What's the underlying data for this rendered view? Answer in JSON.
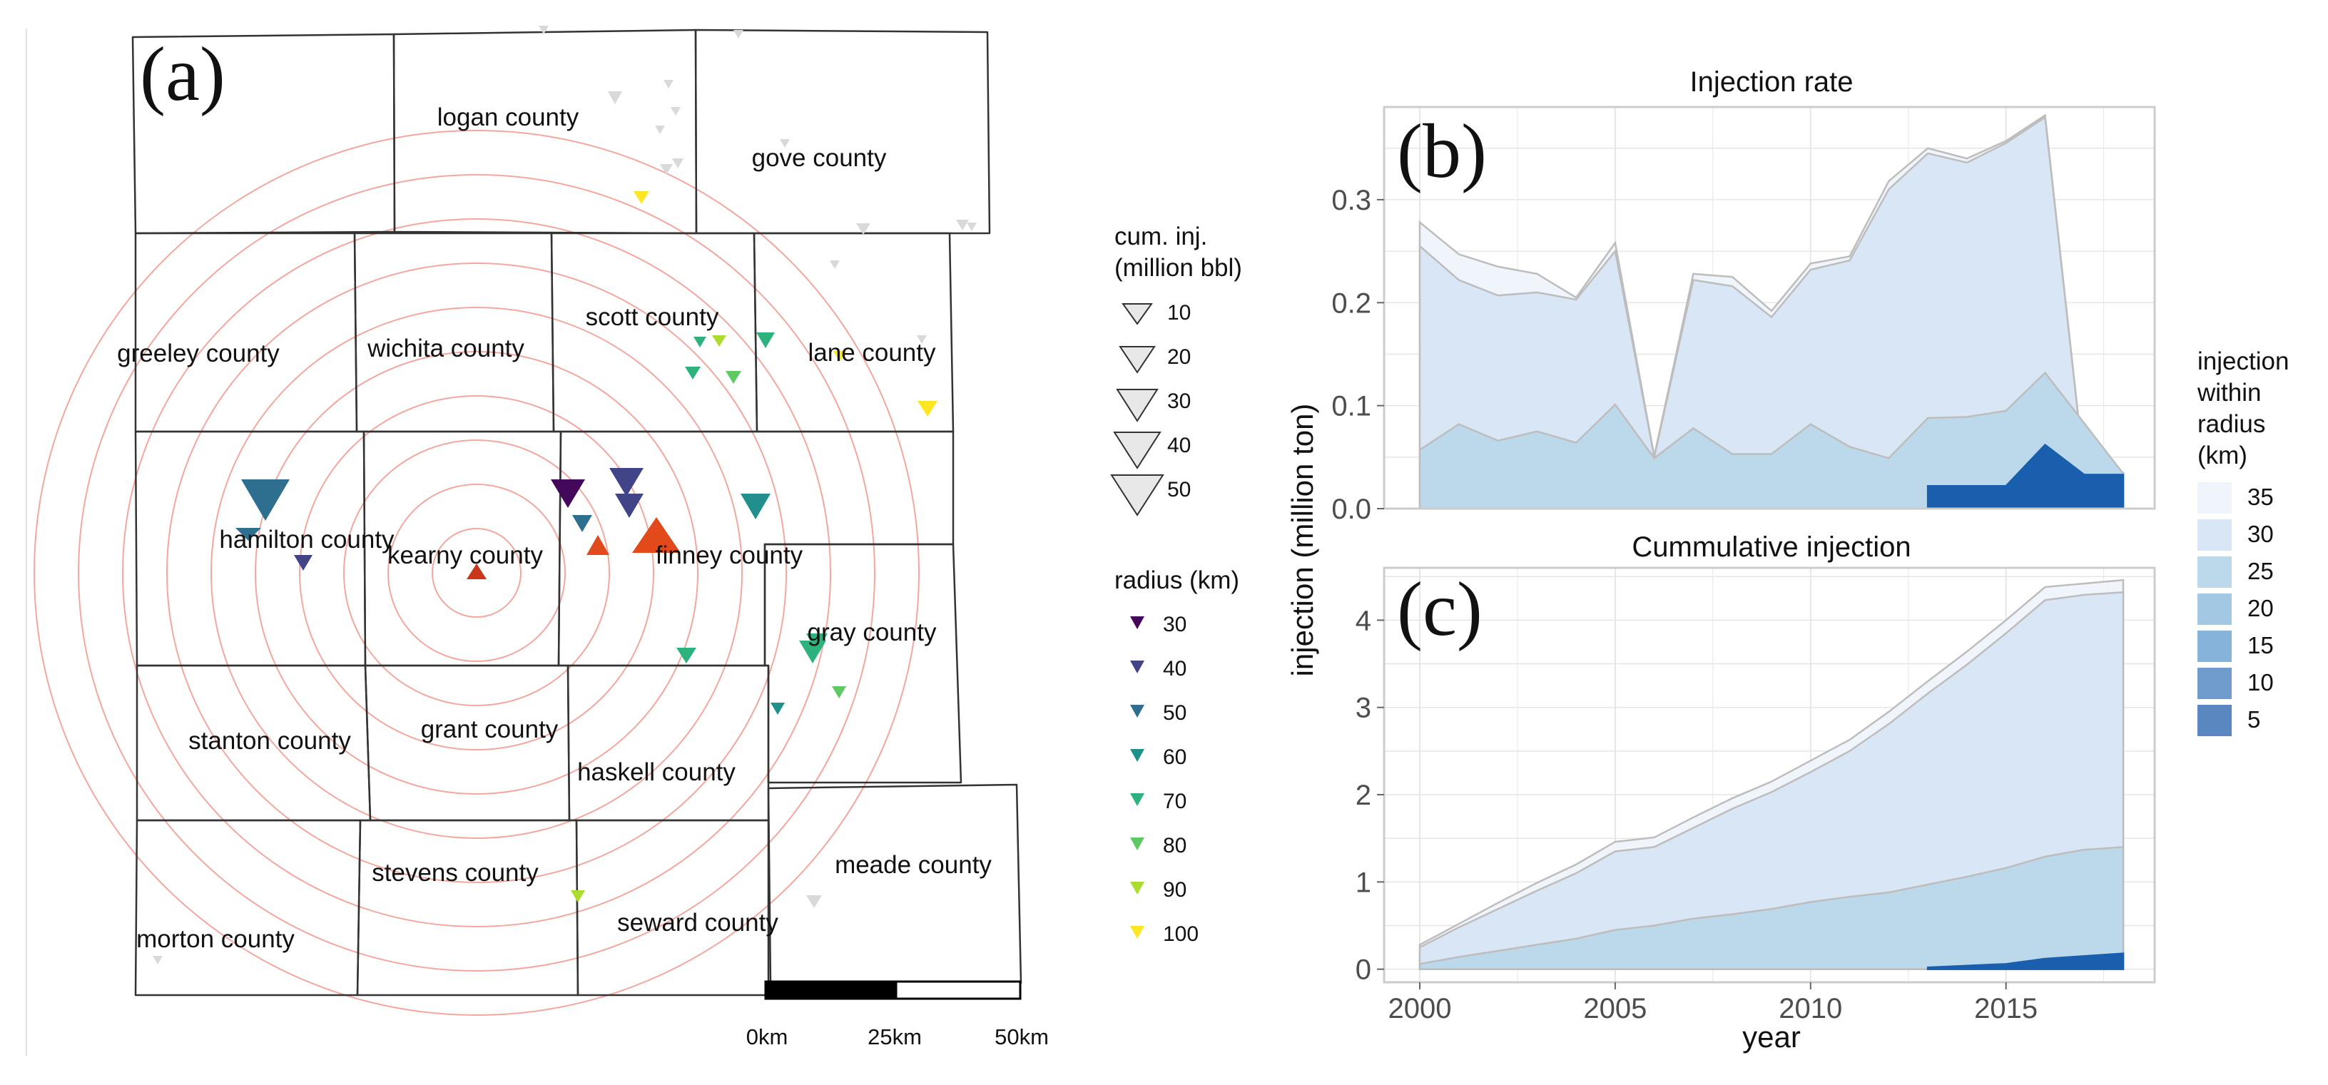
{
  "colors": {
    "radius_ring": "#f4a7a0",
    "county_border": "#333333",
    "cum_fill": "#e8e8e8",
    "cum_stroke": "#8c8c8c",
    "radius_scale": [
      "#44085a",
      "#414487",
      "#2e6e8e",
      "#21908d",
      "#2db27d",
      "#5ec962",
      "#addc30",
      "#fde725"
    ],
    "injection_fills": [
      "#5a87c0",
      "#6f9ccc",
      "#85b3d9",
      "#a2c8e3",
      "#bcd9ec",
      "#d8e6f5",
      "#f0f4fb"
    ],
    "area_line": "#bdbdbd",
    "panel_border": "#cccccc",
    "grid": "#e6e6e6"
  },
  "map": {
    "panel_label": "(a)",
    "counties": [
      "logan county",
      "gove county",
      "greeley county",
      "wichita county",
      "scott county",
      "lane county",
      "hamilton county",
      "kearny county",
      "finney county",
      "gray county",
      "stanton county",
      "grant county",
      "haskell county",
      "stevens county",
      "seward county",
      "meade county",
      "morton county"
    ],
    "scale_bar": {
      "labels": [
        "0km",
        "25km",
        "50km"
      ]
    }
  },
  "legend_cum": {
    "title_line1": "cum. inj.",
    "title_line2": "(million bbl)",
    "values": [
      "10",
      "20",
      "30",
      "40",
      "50"
    ]
  },
  "legend_radius": {
    "title": "radius (km)",
    "values": [
      "30",
      "40",
      "50",
      "60",
      "70",
      "80",
      "90",
      "100"
    ]
  },
  "legend_injection": {
    "title_lines": [
      "injection",
      "within",
      "radius",
      "(km)"
    ],
    "values": [
      "35",
      "30",
      "25",
      "20",
      "15",
      "10",
      "5"
    ]
  },
  "shared_y_label": "injection (million ton)",
  "chart_data": [
    {
      "type": "area",
      "panel_label": "(b)",
      "title": "Injection rate",
      "x": [
        2000,
        2001,
        2002,
        2003,
        2004,
        2005,
        2006,
        2007,
        2008,
        2009,
        2010,
        2011,
        2012,
        2013,
        2014,
        2015,
        2016,
        2017,
        2018
      ],
      "ylim": [
        0,
        0.39
      ],
      "yticks": [
        "0.0",
        "0.1",
        "0.2",
        "0.3"
      ],
      "ytick_values": [
        0,
        0.1,
        0.2,
        0.3
      ],
      "grid": true,
      "series": [
        {
          "name": "35",
          "values": [
            0.278,
            0.247,
            0.235,
            0.228,
            0.205,
            0.258,
            0.051,
            0.228,
            0.225,
            0.192,
            0.238,
            0.245,
            0.318,
            0.35,
            0.34,
            0.357,
            0.382,
            0.038,
            0.035
          ]
        },
        {
          "name": "30",
          "values": [
            0.255,
            0.222,
            0.207,
            0.21,
            0.203,
            0.25,
            0.05,
            0.222,
            0.216,
            0.186,
            0.232,
            0.241,
            0.31,
            0.345,
            0.336,
            0.355,
            0.38,
            0.037,
            0.034
          ]
        },
        {
          "name": "25",
          "values": [
            0.057,
            0.082,
            0.066,
            0.075,
            0.064,
            0.101,
            0.049,
            0.078,
            0.053,
            0.053,
            0.082,
            0.06,
            0.049,
            0.088,
            0.089,
            0.095,
            0.132,
            0.083,
            0.034
          ]
        },
        {
          "name": "5",
          "values": [
            0,
            0,
            0,
            0,
            0,
            0,
            0,
            0,
            0,
            0,
            0,
            0,
            0,
            0.022,
            0.022,
            0.022,
            0.062,
            0.033,
            0.033
          ]
        }
      ]
    },
    {
      "type": "area",
      "panel_label": "(c)",
      "title": "Cummulative injection",
      "x": [
        2000,
        2001,
        2002,
        2003,
        2004,
        2005,
        2006,
        2007,
        2008,
        2009,
        2010,
        2011,
        2012,
        2013,
        2014,
        2015,
        2016,
        2017,
        2018
      ],
      "xlabel": "year",
      "xticks": [
        "2000",
        "2005",
        "2010",
        "2015"
      ],
      "xtick_values": [
        2000,
        2005,
        2010,
        2015
      ],
      "ylim": [
        -0.15,
        4.6
      ],
      "yticks": [
        "0",
        "1",
        "2",
        "3",
        "4"
      ],
      "ytick_values": [
        0,
        1,
        2,
        3,
        4
      ],
      "grid": true,
      "series": [
        {
          "name": "35",
          "values": [
            0.28,
            0.52,
            0.76,
            0.99,
            1.2,
            1.46,
            1.51,
            1.74,
            1.96,
            2.15,
            2.39,
            2.63,
            2.95,
            3.3,
            3.64,
            4.0,
            4.38,
            4.42,
            4.46
          ]
        },
        {
          "name": "30",
          "values": [
            0.25,
            0.48,
            0.69,
            0.9,
            1.1,
            1.35,
            1.4,
            1.62,
            1.84,
            2.03,
            2.26,
            2.5,
            2.81,
            3.16,
            3.49,
            3.85,
            4.23,
            4.29,
            4.32
          ]
        },
        {
          "name": "25",
          "values": [
            0.06,
            0.14,
            0.21,
            0.28,
            0.35,
            0.45,
            0.5,
            0.58,
            0.63,
            0.69,
            0.77,
            0.83,
            0.88,
            0.97,
            1.06,
            1.16,
            1.29,
            1.37,
            1.4
          ]
        },
        {
          "name": "5",
          "values": [
            0,
            0,
            0,
            0,
            0,
            0,
            0,
            0,
            0,
            0,
            0,
            0,
            0,
            0.02,
            0.04,
            0.06,
            0.12,
            0.15,
            0.18
          ]
        }
      ]
    }
  ]
}
